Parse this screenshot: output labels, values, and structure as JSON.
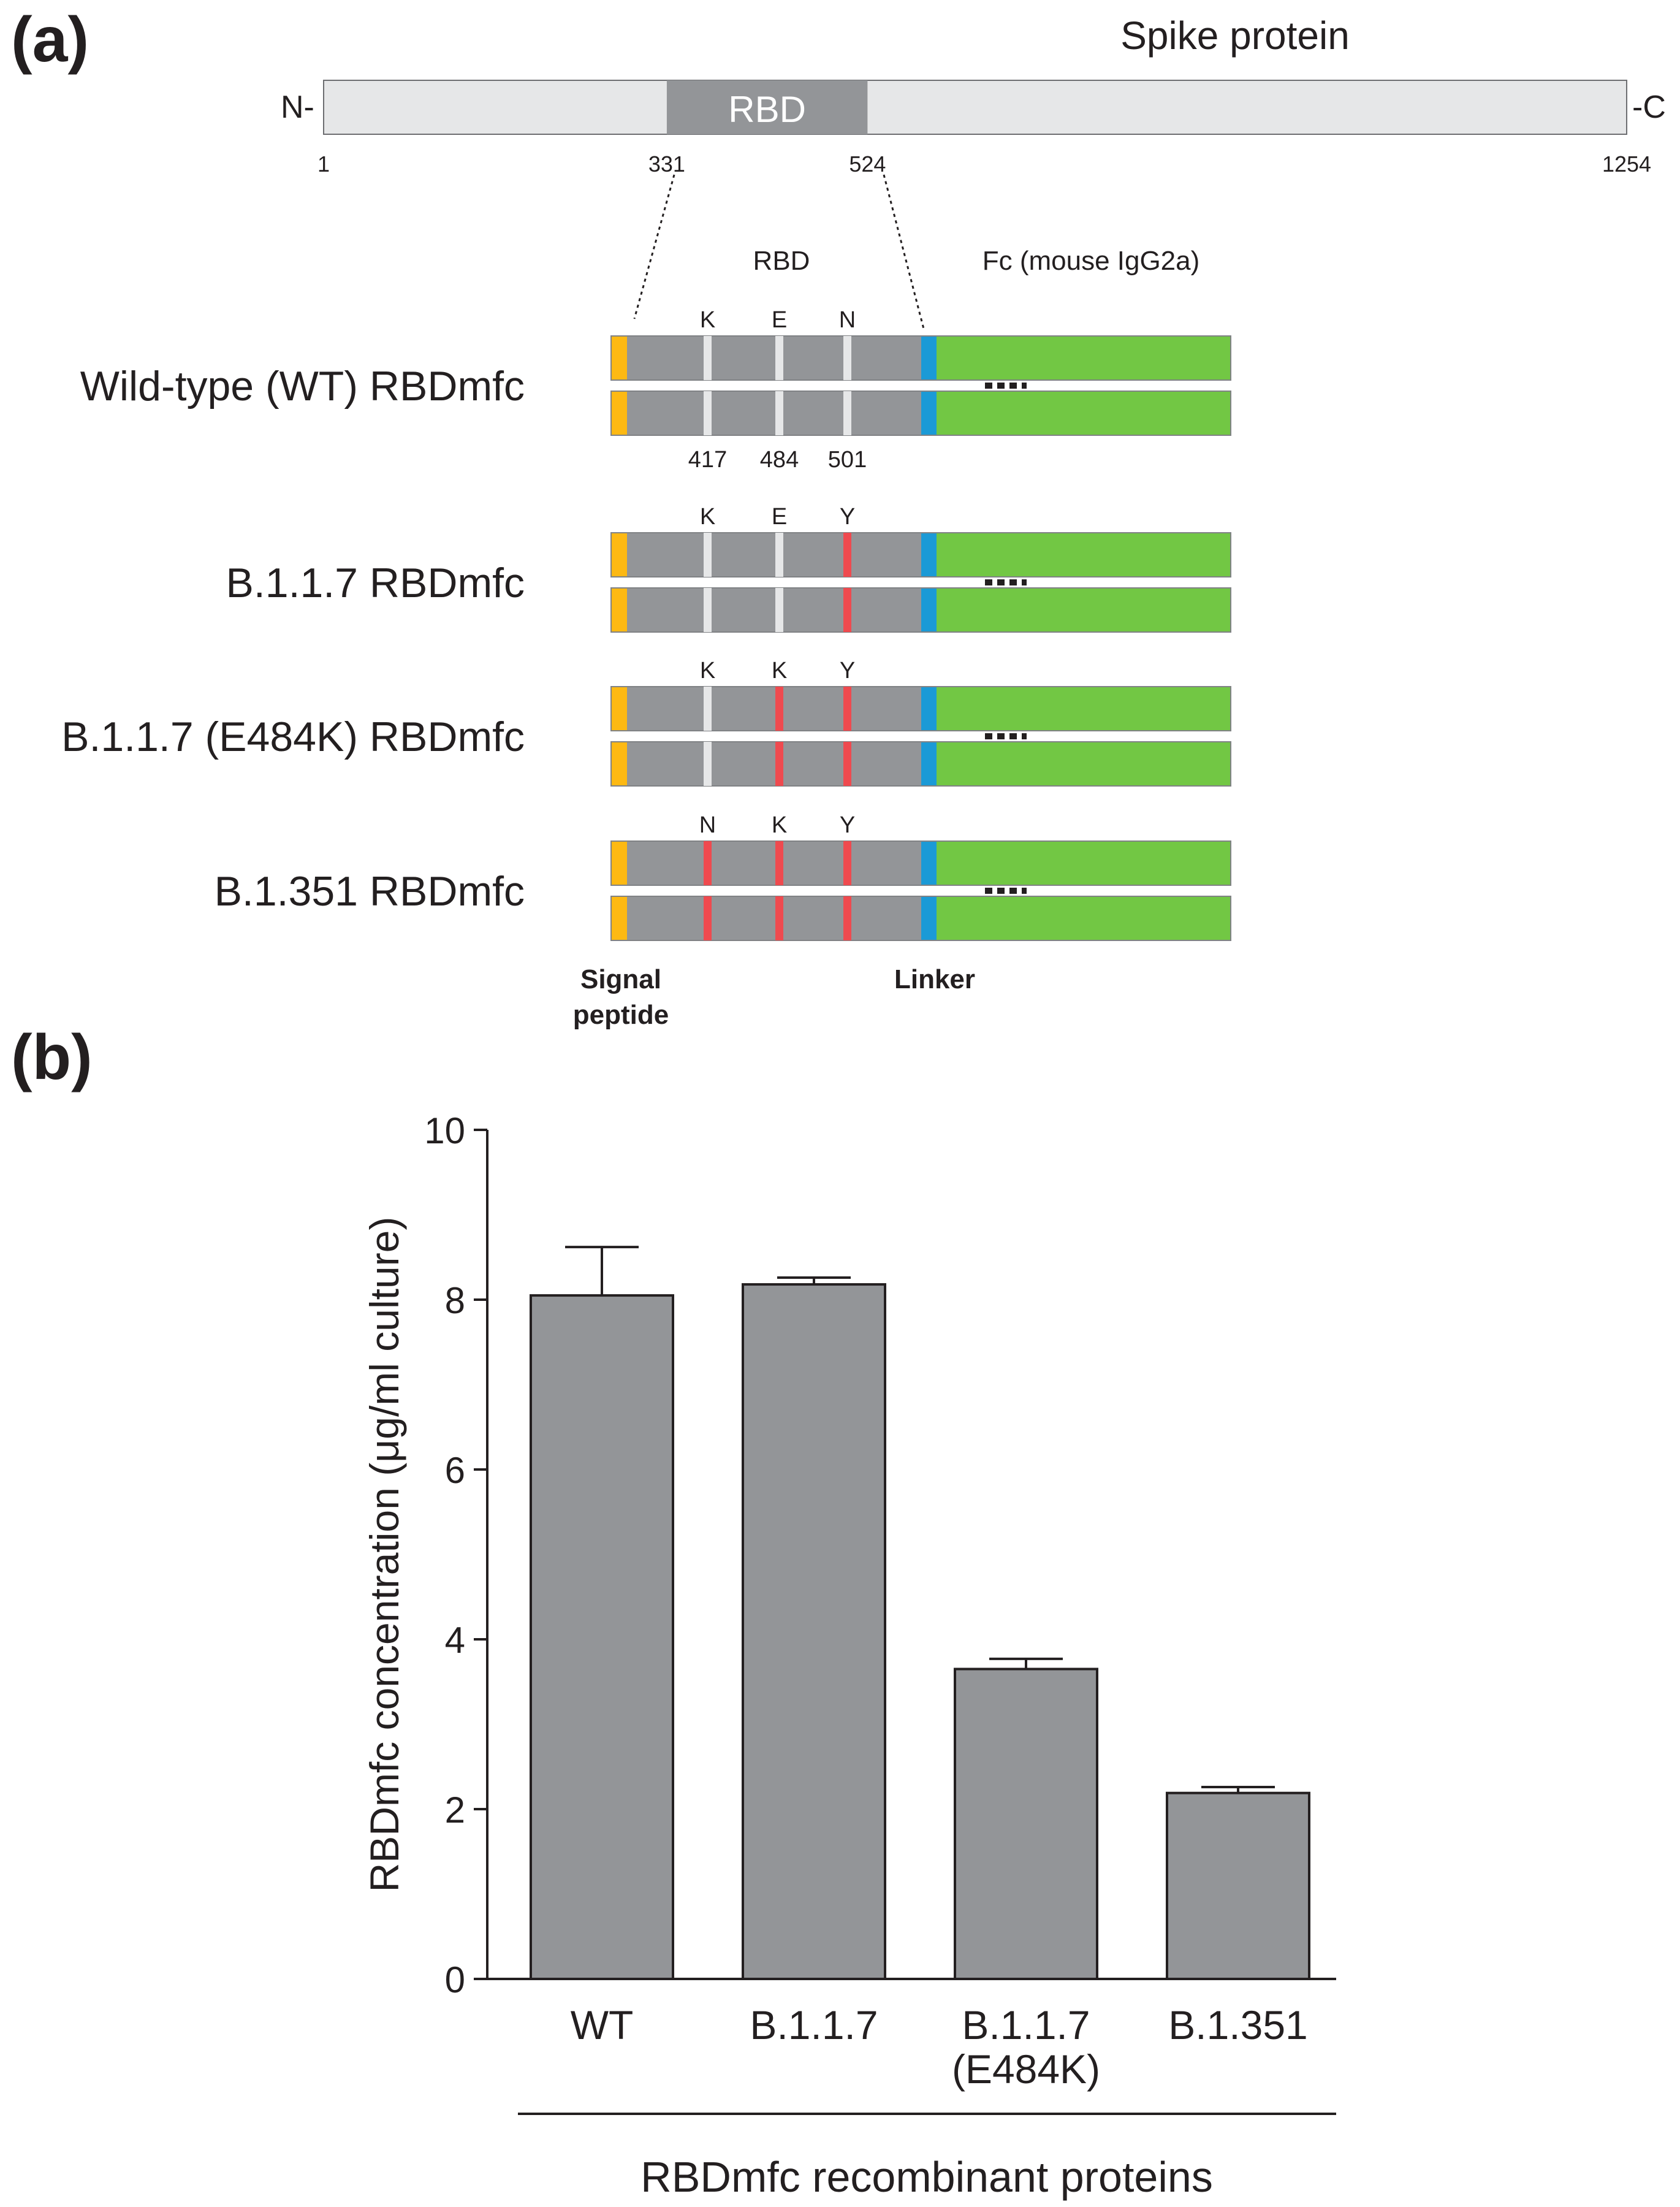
{
  "panel_a": {
    "label": "(a)",
    "spike": {
      "title": "Spike protein",
      "n_term": "N-",
      "c_term": "-C",
      "domain_label": "RBD",
      "start": 1,
      "rbd_start": 331,
      "rbd_end": 524,
      "end": 1254,
      "tick_labels": [
        "1",
        "331",
        "524",
        "1254"
      ]
    },
    "construct_header": {
      "rbd": "RBD",
      "fc": "Fc (mouse IgG2a)"
    },
    "constructs": [
      {
        "name": "Wild-type (WT) RBDmfc",
        "residues": [
          "K",
          "E",
          "N"
        ],
        "mutated": [
          false,
          false,
          false
        ]
      },
      {
        "name": "B.1.1.7 RBDmfc",
        "residues": [
          "K",
          "E",
          "Y"
        ],
        "mutated": [
          false,
          false,
          true
        ]
      },
      {
        "name": "B.1.1.7 (E484K) RBDmfc",
        "residues": [
          "K",
          "K",
          "Y"
        ],
        "mutated": [
          false,
          true,
          true
        ]
      },
      {
        "name": "B.1.351 RBDmfc",
        "residues": [
          "N",
          "K",
          "Y"
        ],
        "mutated": [
          true,
          true,
          true
        ]
      }
    ],
    "positions": [
      "417",
      "484",
      "501"
    ],
    "signal_peptide_label": [
      "Signal",
      "peptide"
    ],
    "linker_label": "Linker",
    "colors": {
      "signal": "#fdb913",
      "rbd": "#939598",
      "linker": "#1b9ad6",
      "fc": "#72c744",
      "wild_residue": "#e6e7e8",
      "mutant_residue": "#ef4a4f",
      "spike_bar": "#e6e7e8",
      "spike_rbd": "#939598"
    }
  },
  "panel_b": {
    "label": "(b)",
    "chart_data": {
      "type": "bar",
      "categories": [
        [
          "WT"
        ],
        [
          "B.1.1.7"
        ],
        [
          "B.1.1.7",
          "(E484K)"
        ],
        [
          "B.1.351"
        ]
      ],
      "values": [
        8.05,
        8.18,
        3.65,
        2.19
      ],
      "error_upper": [
        8.62,
        8.26,
        3.77,
        2.26
      ],
      "ylabel": "RBDmfc concentration (μg/ml culture)",
      "xlabel": "RBDmfc recombinant proteins",
      "ylim": [
        0,
        10
      ],
      "yticks": [
        0,
        2,
        4,
        6,
        8,
        10
      ],
      "bar_color": "#939598"
    }
  }
}
